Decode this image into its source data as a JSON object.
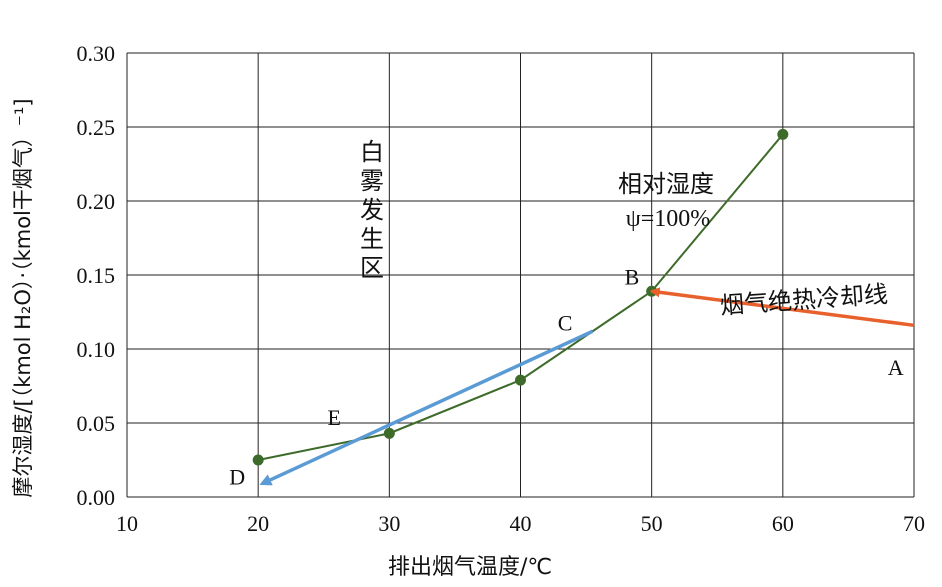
{
  "chart_data": {
    "type": "line",
    "xlabel": "排出烟气温度/℃",
    "ylabel": "摩尔湿度/[（kmol H₂O）·（kmol干烟气）⁻¹]",
    "xlim": [
      10,
      70
    ],
    "ylim": [
      0,
      0.3
    ],
    "x_ticks": [
      "10",
      "20",
      "30",
      "40",
      "50",
      "60",
      "70"
    ],
    "y_ticks": [
      "0.00",
      "0.05",
      "0.10",
      "0.15",
      "0.20",
      "0.25",
      "0.30"
    ],
    "grid": true,
    "series": [
      {
        "color": "#3d6b2a",
        "x": [
          20,
          30,
          40,
          50,
          60
        ],
        "y": [
          0.025,
          0.043,
          0.079,
          0.139,
          0.245
        ]
      }
    ],
    "arrows": [
      {
        "color": "#e8612c",
        "from": [
          70,
          0.116
        ],
        "to": [
          50,
          0.139
        ]
      },
      {
        "color": "#5b9bd5",
        "from": [
          45.5,
          0.112
        ],
        "to": [
          20.3,
          0.009
        ]
      }
    ],
    "point_labels": [
      {
        "text": "A",
        "x": 68.6,
        "y": 0.088
      },
      {
        "text": "B",
        "x": 48.5,
        "y": 0.149
      },
      {
        "text": "C",
        "x": 43.4,
        "y": 0.118
      },
      {
        "text": "D",
        "x": 18.4,
        "y": 0.014
      },
      {
        "text": "E",
        "x": 25.8,
        "y": 0.054
      }
    ],
    "annotations": {
      "fog_zone": [
        "白",
        "雾",
        "发",
        "生",
        "区"
      ],
      "rh_line1": "相对湿度",
      "rh_line2": "ψ=100%",
      "cooling_line": "烟气绝热冷却线"
    }
  }
}
